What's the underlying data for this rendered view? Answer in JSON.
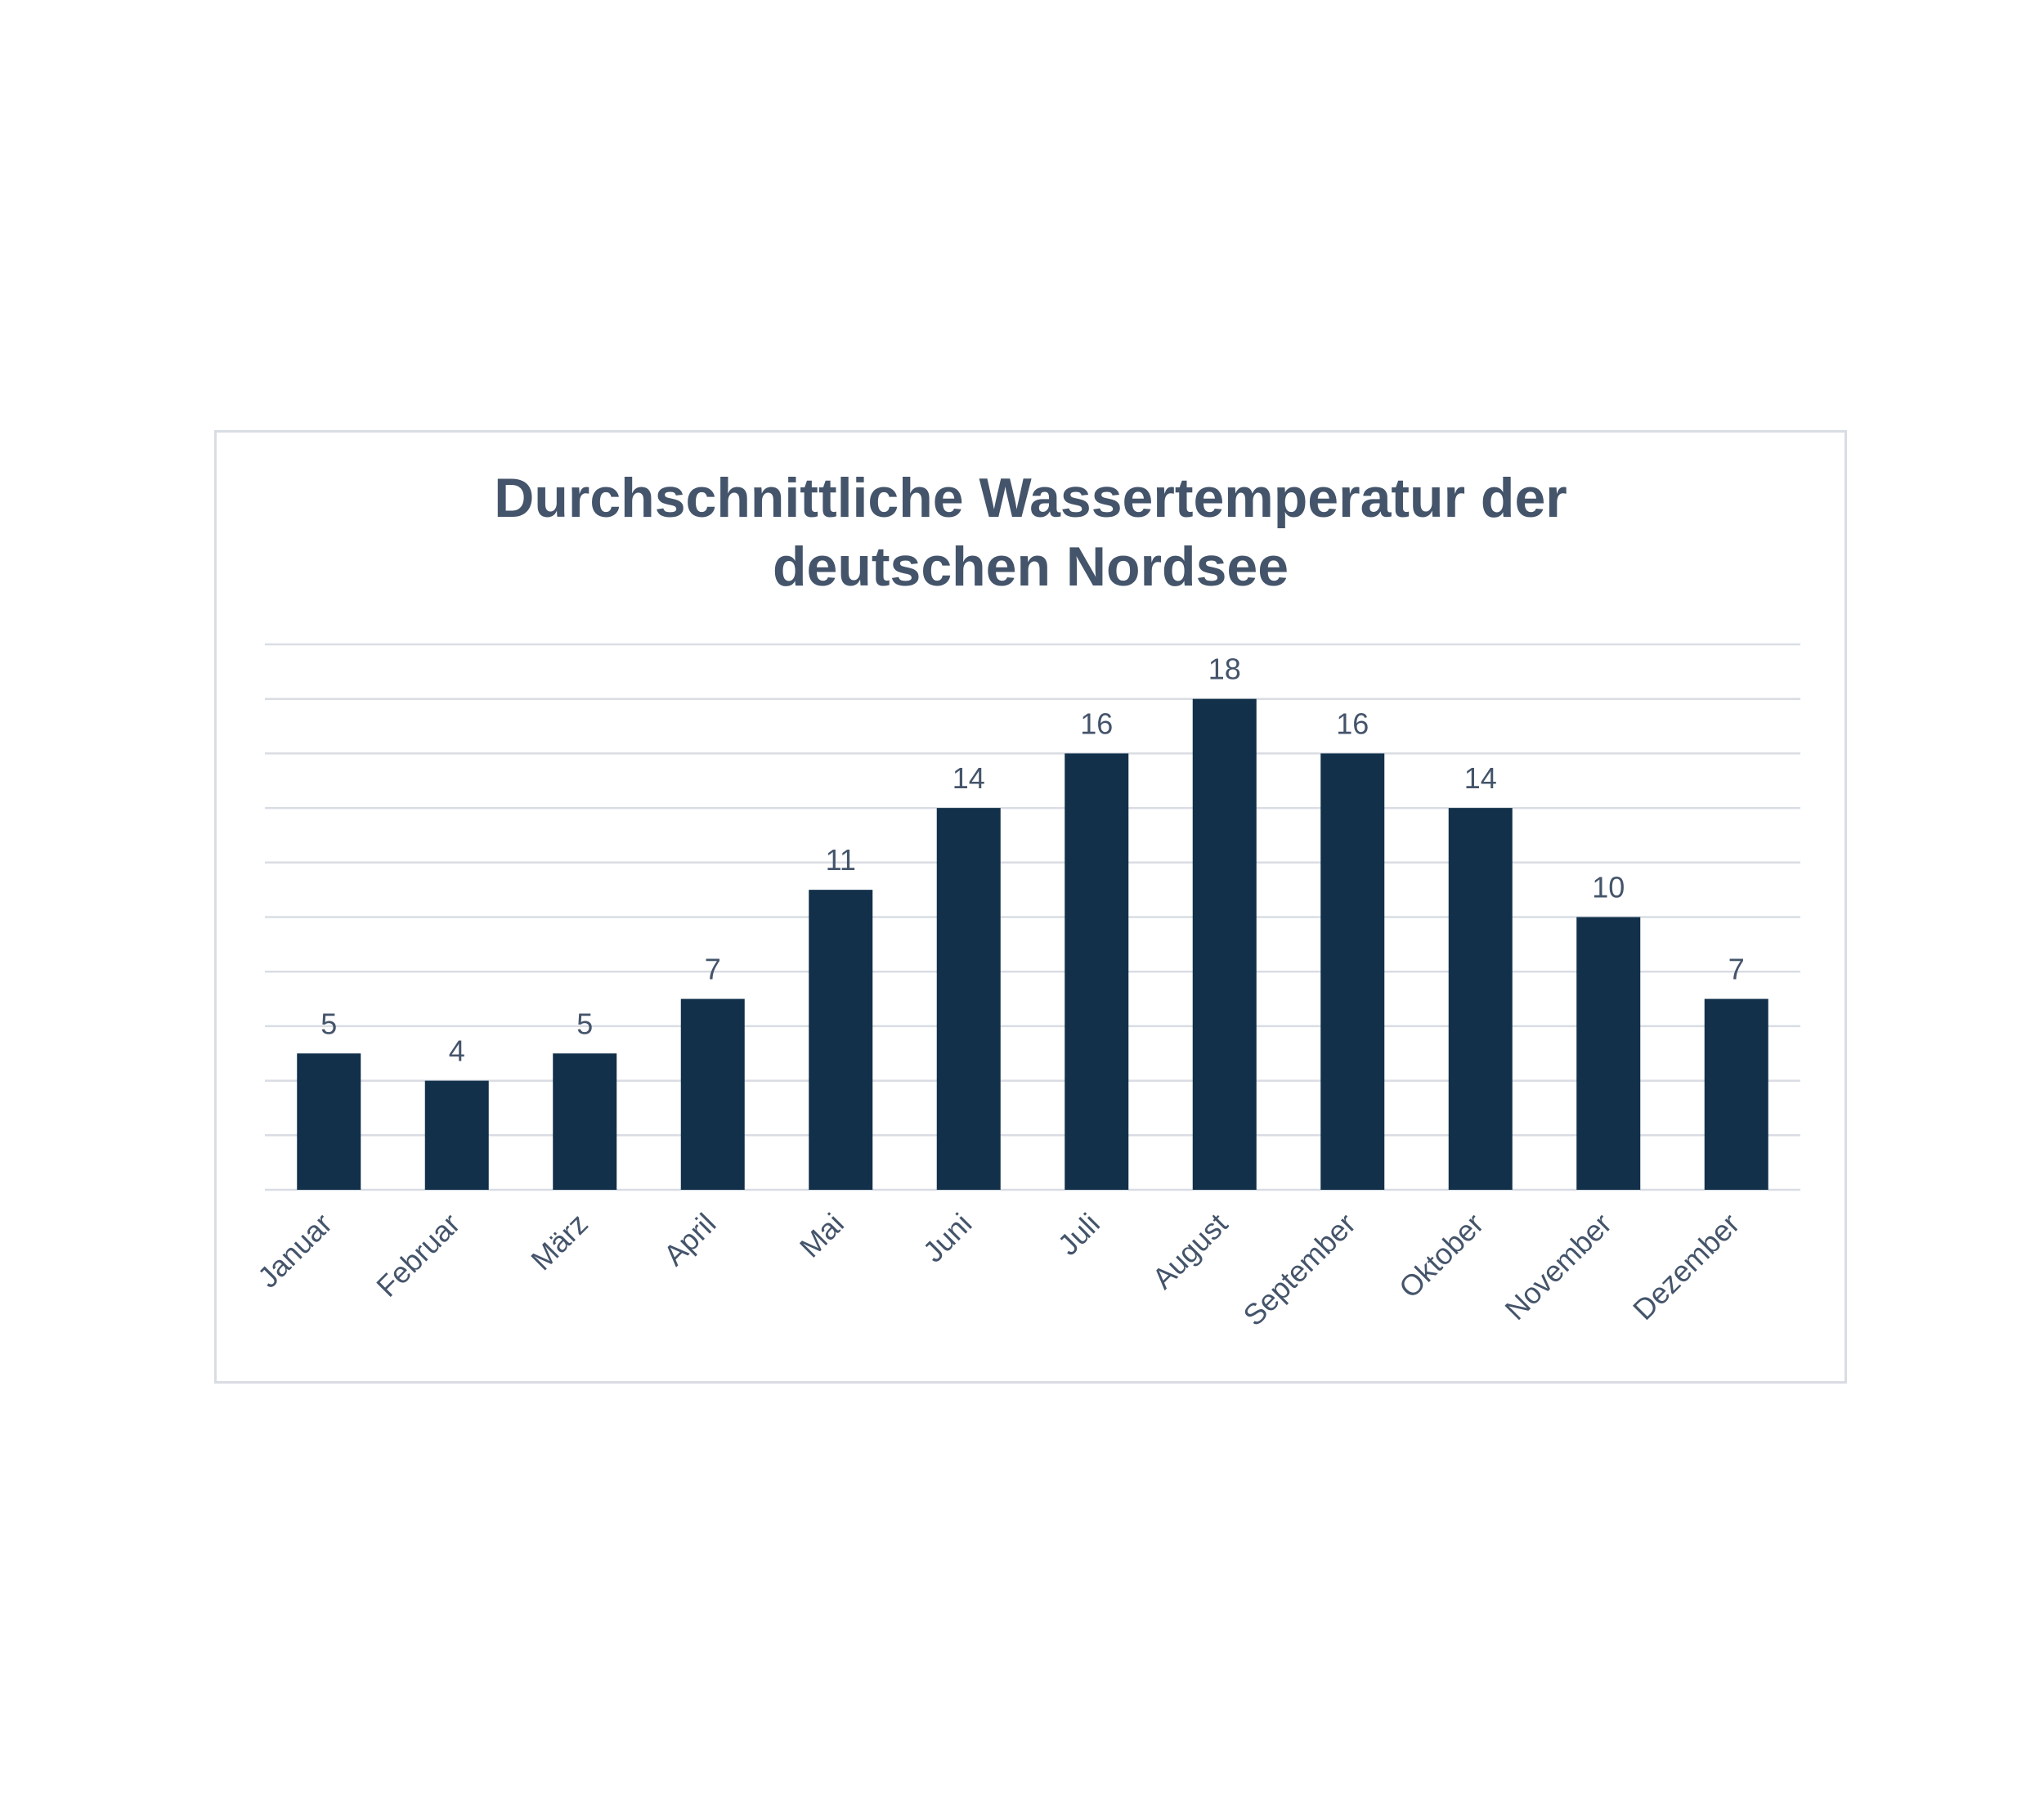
{
  "chart_data": {
    "type": "bar",
    "title_lines": [
      "Durchschnittliche Wassertemperatur der",
      "deutschen Nordsee"
    ],
    "categories": [
      "Januar",
      "Februar",
      "März",
      "April",
      "Mai",
      "Juni",
      "Juli",
      "August",
      "September",
      "Oktober",
      "November",
      "Dezember"
    ],
    "values": [
      5,
      4,
      5,
      7,
      11,
      14,
      16,
      18,
      16,
      14,
      10,
      7
    ],
    "xlabel": "",
    "ylabel": "",
    "ylim": [
      0,
      20
    ],
    "grid": true,
    "y_tick_labels_shown": false,
    "x_tick_rotation": -45,
    "colors": {
      "bar": "#12304a",
      "text": "#44546a",
      "grid": "#d9dde3"
    }
  }
}
